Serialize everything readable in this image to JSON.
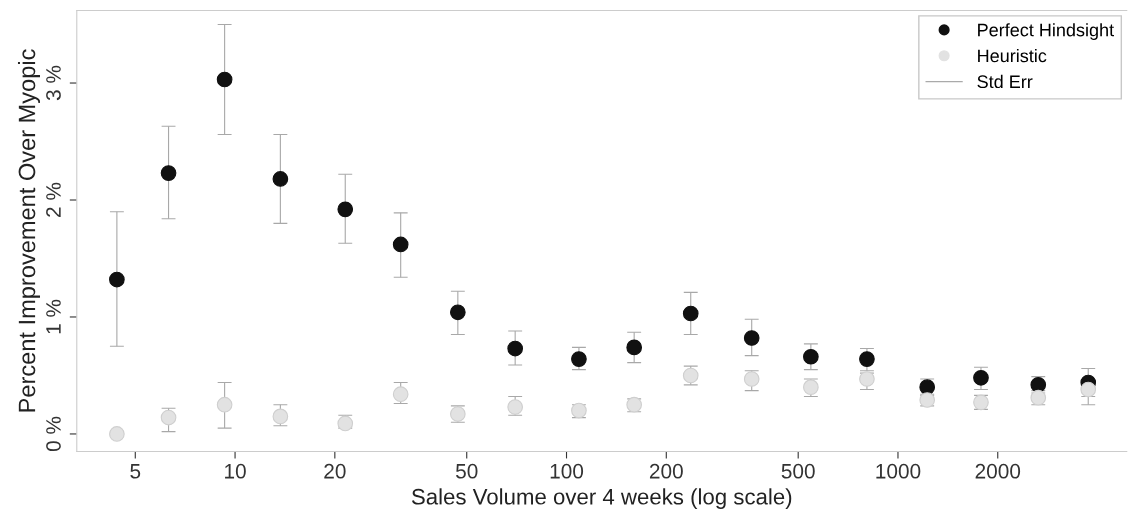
{
  "chart_data": {
    "type": "scatter",
    "xlabel": "Sales Volume over 4 weeks (log scale)",
    "ylabel": "Percent Improvement Over Myopic",
    "log": "x",
    "marker": "circle",
    "legend": "top right",
    "grid": false,
    "xlim": [
      3.33,
      4900
    ],
    "xticks": [
      5,
      10,
      20,
      50,
      100,
      200,
      500,
      1000,
      2000
    ],
    "ylim": [
      -0.15,
      3.62
    ],
    "yticks": [
      {
        "value": 0,
        "label": "0 %"
      },
      {
        "value": 1,
        "label": "1 %"
      },
      {
        "value": 2,
        "label": "2 %"
      },
      {
        "value": 3,
        "label": "3 %"
      }
    ],
    "x": [
      4.4,
      6.3,
      9.3,
      13.7,
      21.5,
      31.6,
      47,
      70,
      109,
      160,
      237,
      362,
      546,
      806,
      1225,
      1780,
      2650,
      3750
    ],
    "series": [
      {
        "name": "Perfect Hindsight",
        "color": "#111111",
        "values": [
          1.32,
          2.23,
          3.03,
          2.18,
          1.92,
          1.62,
          1.04,
          0.73,
          0.64,
          0.74,
          1.03,
          0.82,
          0.66,
          0.64,
          0.4,
          0.48,
          0.42,
          0.44
        ],
        "errors": [
          [
            0.75,
            1.9
          ],
          [
            1.84,
            2.63
          ],
          [
            2.56,
            3.5
          ],
          [
            1.8,
            2.56
          ],
          [
            1.63,
            2.22
          ],
          [
            1.34,
            1.89
          ],
          [
            0.85,
            1.22
          ],
          [
            0.59,
            0.88
          ],
          [
            0.55,
            0.74
          ],
          [
            0.61,
            0.87
          ],
          [
            0.85,
            1.21
          ],
          [
            0.67,
            0.98
          ],
          [
            0.55,
            0.77
          ],
          [
            0.54,
            0.73
          ],
          [
            0.33,
            0.47
          ],
          [
            0.38,
            0.57
          ],
          [
            0.35,
            0.49
          ],
          [
            0.32,
            0.56
          ]
        ]
      },
      {
        "name": "Heuristic",
        "color": "#e2e2e2",
        "values": [
          0.0,
          0.14,
          0.25,
          0.15,
          0.09,
          0.34,
          0.17,
          0.23,
          0.2,
          0.25,
          0.5,
          0.47,
          0.4,
          0.47,
          0.29,
          0.27,
          0.31,
          0.38
        ],
        "errors": [
          [
            -0.01,
            0.01
          ],
          [
            0.02,
            0.22
          ],
          [
            0.05,
            0.44
          ],
          [
            0.07,
            0.25
          ],
          [
            0.05,
            0.16
          ],
          [
            0.26,
            0.44
          ],
          [
            0.1,
            0.24
          ],
          [
            0.16,
            0.32
          ],
          [
            0.14,
            0.25
          ],
          [
            0.19,
            0.3
          ],
          [
            0.42,
            0.58
          ],
          [
            0.37,
            0.54
          ],
          [
            0.32,
            0.47
          ],
          [
            0.38,
            0.52
          ],
          [
            0.24,
            0.34
          ],
          [
            0.21,
            0.33
          ],
          [
            0.25,
            0.37
          ],
          [
            0.25,
            0.44
          ]
        ]
      },
      {
        "name": "Std Err",
        "type": "line",
        "color": "#aaaaaa",
        "values": [
          null,
          null,
          null,
          null,
          null,
          null,
          null,
          null,
          null,
          null,
          null,
          null,
          null,
          null,
          null,
          null,
          null,
          null
        ]
      }
    ]
  }
}
